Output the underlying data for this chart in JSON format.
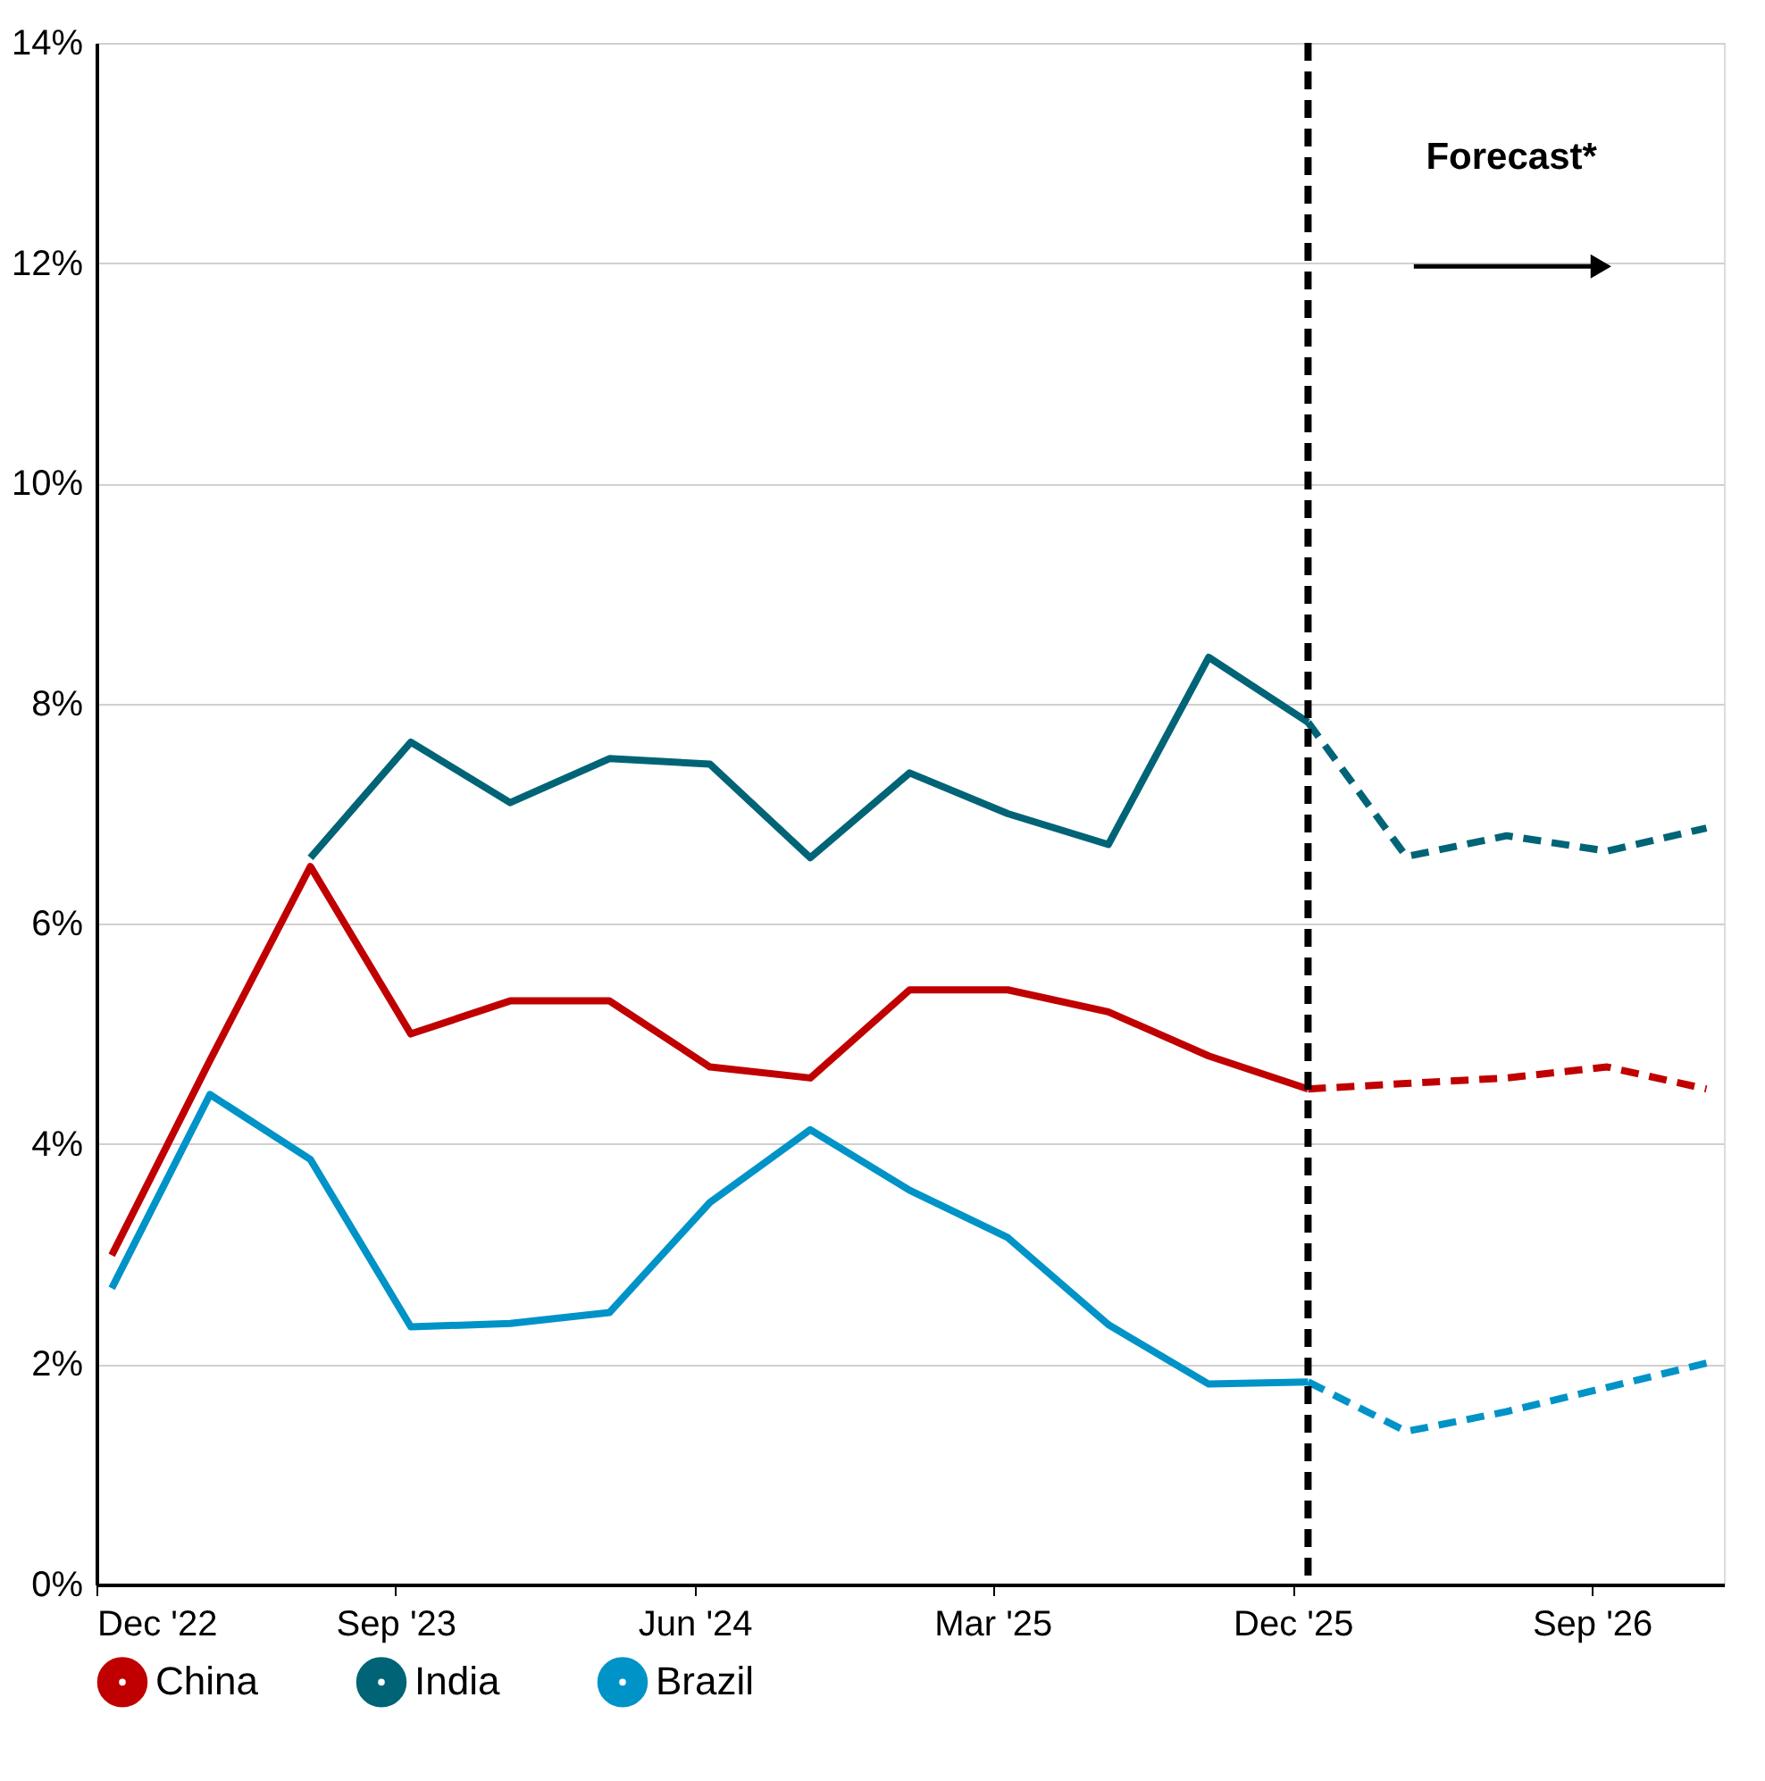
{
  "chart_data": {
    "type": "line",
    "x": [
      "2022-12-15",
      "2023-03-15",
      "2023-06-15",
      "2023-09-15",
      "2023-12-15",
      "2024-03-15",
      "2024-06-15",
      "2024-09-15",
      "2024-12-15",
      "2025-03-15",
      "2025-06-15",
      "2025-09-15",
      "2025-12-15",
      "2026-03-15",
      "2026-06-15",
      "2026-09-15",
      "2026-12-15"
    ],
    "series": [
      {
        "name": "China",
        "color": "#c00000",
        "line_style": "solid",
        "values": [
          2.99,
          4.76,
          6.52,
          5.0,
          5.3,
          5.3,
          4.7,
          4.6,
          5.4,
          5.4,
          5.2,
          4.8,
          4.5,
          null,
          null,
          null,
          null
        ]
      },
      {
        "name": "India",
        "color": "#006476",
        "line_style": "solid",
        "values": [
          null,
          null,
          6.6,
          7.65,
          7.1,
          7.5,
          7.45,
          6.6,
          7.37,
          7.0,
          6.72,
          8.42,
          7.83,
          null,
          null,
          null,
          null
        ]
      },
      {
        "name": "Brazil",
        "color": "#0093c8",
        "line_style": "solid",
        "values": [
          2.69,
          4.45,
          3.86,
          2.34,
          2.37,
          2.47,
          3.47,
          4.13,
          3.58,
          3.15,
          2.36,
          1.82,
          1.84,
          null,
          null,
          null,
          null
        ]
      },
      {
        "color": "#c00000",
        "line_style": "dashed",
        "values": [
          null,
          null,
          null,
          null,
          null,
          null,
          null,
          null,
          null,
          null,
          null,
          null,
          4.5,
          4.55,
          4.6,
          4.7,
          4.5
        ]
      },
      {
        "color": "#006476",
        "line_style": "dashed",
        "values": [
          null,
          null,
          null,
          null,
          null,
          null,
          null,
          null,
          null,
          null,
          null,
          null,
          7.83,
          6.61,
          6.8,
          6.66,
          6.87
        ]
      },
      {
        "color": "#0093c8",
        "line_style": "dashed",
        "values": [
          null,
          null,
          null,
          null,
          null,
          null,
          null,
          null,
          null,
          null,
          null,
          null,
          1.84,
          1.39,
          1.57,
          1.79,
          2.01
        ]
      }
    ],
    "xlim": [
      "2022-12-01",
      "2026-12-31"
    ],
    "xticks": [
      {
        "value": "2022-12-01",
        "label": "Dec '22"
      },
      {
        "value": "2023-09-01",
        "label": "Sep '23"
      },
      {
        "value": "2024-06-01",
        "label": "Jun '24"
      },
      {
        "value": "2025-03-01",
        "label": "Mar '25"
      },
      {
        "value": "2025-12-01",
        "label": "Dec '25"
      },
      {
        "value": "2026-09-01",
        "label": "Sep '26"
      }
    ],
    "ylim": [
      0,
      14
    ],
    "yticks": [
      {
        "value": 0,
        "label": "0%"
      },
      {
        "value": 2,
        "label": "2%"
      },
      {
        "value": 4,
        "label": "4%"
      },
      {
        "value": 6,
        "label": "6%"
      },
      {
        "value": 8,
        "label": "8%"
      },
      {
        "value": 10,
        "label": "10%"
      },
      {
        "value": 12,
        "label": "12%"
      },
      {
        "value": 14,
        "label": "14%"
      }
    ],
    "grid": "y",
    "legend": "bottom",
    "marker": "none",
    "ref_lines": [
      {
        "axis": "x",
        "value": "2025-12-15",
        "color": "#000000",
        "line_style": "dashed"
      }
    ],
    "annotations": [
      "Forecast*"
    ]
  }
}
